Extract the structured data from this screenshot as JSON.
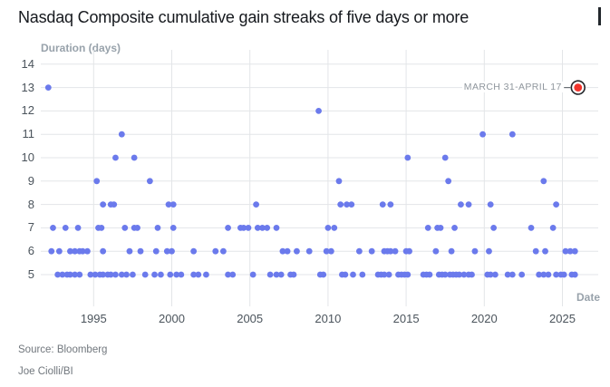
{
  "title": "Nasdaq Composite cumulative gain streaks of five days or more",
  "footer": {
    "source": "Source: Bloomberg",
    "byline": "Joe Ciolli/BI"
  },
  "colors": {
    "dot": "#6b7aec",
    "highlight_dot": "#f1342c",
    "highlight_ring": "#22262a",
    "grid": "#e3e5e8",
    "tick_text": "#4b545c",
    "muted_text": "#98a2ab",
    "annotation_text": "#8f969d",
    "title_text": "#16191e"
  },
  "chart_data": {
    "type": "scatter",
    "title": "Nasdaq Composite cumulative gain streaks of five days or more",
    "ylabel": "Duration (days)",
    "xlabel": "Date",
    "x_ticks": [
      1995,
      2000,
      2005,
      2010,
      2015,
      2020,
      2025
    ],
    "y_ticks": [
      5,
      6,
      7,
      8,
      9,
      10,
      11,
      12,
      13,
      14
    ],
    "xlim": [
      1991.6,
      2027.3
    ],
    "ylim": [
      4,
      14.6
    ],
    "grid": true,
    "legend": false,
    "points_by_duration": {
      "13": [
        1992.1
      ],
      "12": [
        2009.4
      ],
      "11": [
        1996.8,
        2019.9,
        2021.8
      ],
      "10": [
        1996.4,
        1997.6,
        2015.1,
        2017.5
      ],
      "9": [
        1995.2,
        1998.6,
        2010.7,
        2017.7,
        2023.8
      ],
      "8": [
        1995.6,
        1996.1,
        1996.3,
        1999.8,
        2000.1,
        2005.4,
        2010.8,
        2011.2,
        2011.5,
        2013.5,
        2014.0,
        2018.5,
        2019.0,
        2020.4,
        2024.6
      ],
      "7": [
        1992.4,
        1993.2,
        1994.0,
        1995.3,
        1995.5,
        1997.0,
        1997.6,
        1997.8,
        1999.1,
        2000.1,
        2003.6,
        2004.4,
        2004.6,
        2004.9,
        2005.5,
        2005.8,
        2006.1,
        2006.7,
        2010.0,
        2010.4,
        2016.4,
        2017.0,
        2017.2,
        2018.1,
        2020.6,
        2023.0,
        2024.4
      ],
      "6": [
        1992.3,
        1992.8,
        1993.5,
        1993.8,
        1994.1,
        1994.3,
        1994.6,
        1995.6,
        1997.3,
        1998.0,
        1999.0,
        1999.7,
        2000.0,
        2001.4,
        2002.8,
        2003.3,
        2007.1,
        2007.4,
        2008.0,
        2008.8,
        2009.9,
        2010.2,
        2012.0,
        2012.8,
        2013.6,
        2013.8,
        2014.0,
        2014.3,
        2015.0,
        2015.2,
        2016.9,
        2017.9,
        2019.4,
        2020.3,
        2023.3,
        2023.9,
        2025.2,
        2025.5,
        2025.8
      ],
      "5": [
        1992.7,
        1993.0,
        1993.3,
        1993.5,
        1993.8,
        1994.1,
        1994.8,
        1995.1,
        1995.4,
        1995.6,
        1995.9,
        1996.1,
        1996.4,
        1996.8,
        1997.1,
        1997.5,
        1998.3,
        1998.9,
        1999.3,
        1999.9,
        2000.3,
        2000.6,
        2001.4,
        2001.7,
        2002.2,
        2003.6,
        2003.9,
        2005.2,
        2006.3,
        2006.7,
        2007.0,
        2007.6,
        2007.8,
        2009.5,
        2009.7,
        2010.9,
        2011.1,
        2011.6,
        2012.2,
        2013.2,
        2013.4,
        2013.6,
        2013.9,
        2014.5,
        2014.7,
        2014.9,
        2015.1,
        2016.1,
        2016.3,
        2016.5,
        2017.1,
        2017.3,
        2017.5,
        2017.8,
        2018.0,
        2018.2,
        2018.4,
        2018.7,
        2019.0,
        2019.2,
        2020.2,
        2020.4,
        2020.7,
        2021.5,
        2021.8,
        2022.4,
        2023.5,
        2023.8,
        2024.1,
        2024.6,
        2024.9,
        2025.1,
        2025.6,
        2025.8
      ],
      "highlight": {
        "label": "MARCH 31-APRIL 17",
        "duration": 13,
        "year": 2026.0
      }
    }
  }
}
